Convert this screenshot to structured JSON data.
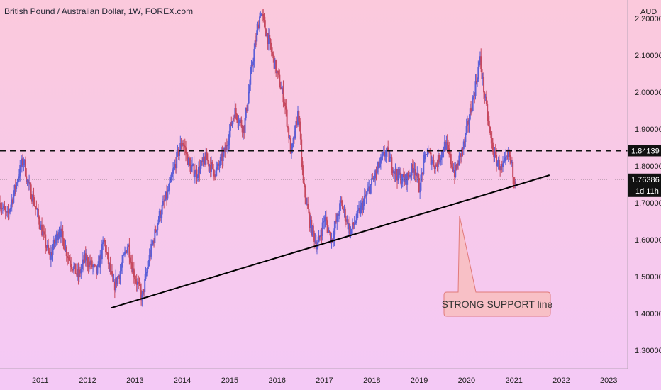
{
  "chart_data": {
    "type": "candlestick",
    "title": "British Pound / Australian Dollar, 1W, FOREX.com",
    "currency": "AUD",
    "y_ticks": [
      "2.20000",
      "2.10000",
      "2.00000",
      "1.90000",
      "1.80000",
      "1.70000",
      "1.60000",
      "1.50000",
      "1.40000",
      "1.30000"
    ],
    "y_tick_values": [
      2.2,
      2.1,
      2.0,
      1.9,
      1.8,
      1.7,
      1.6,
      1.5,
      1.4,
      1.3
    ],
    "x_ticks": [
      "2011",
      "2012",
      "2013",
      "2014",
      "2015",
      "2016",
      "2017",
      "2018",
      "2019",
      "2020",
      "2021",
      "2022",
      "2023"
    ],
    "x_tick_values": [
      2011,
      2012,
      2013,
      2014,
      2015,
      2016,
      2017,
      2018,
      2019,
      2020,
      2021,
      2022,
      2023
    ],
    "ylim": [
      1.25,
      2.25
    ],
    "xlim": [
      2010.15,
      2023.4
    ],
    "colors": {
      "up": "#5c5fd8",
      "down": "#c7485f",
      "bg_top": "#fbc9dc",
      "bg_bottom": "#f4c9f6"
    },
    "horizontal_line": {
      "value": 1.84139,
      "label": "1.84139",
      "style": "dashed"
    },
    "last_price": {
      "value": 1.76386,
      "label": "1.76386",
      "countdown": "1d 11h",
      "style": "dotted"
    },
    "support_line": {
      "start": [
        2012.5,
        1.415
      ],
      "end": [
        2021.75,
        1.775
      ]
    },
    "annotation": {
      "text": "STRONG SUPPORT line",
      "anchor": [
        2019.85,
        1.665
      ]
    },
    "path_points": [
      [
        2010.15,
        1.7
      ],
      [
        2010.3,
        1.66
      ],
      [
        2010.45,
        1.73
      ],
      [
        2010.55,
        1.78
      ],
      [
        2010.65,
        1.82
      ],
      [
        2010.72,
        1.76
      ],
      [
        2010.85,
        1.71
      ],
      [
        2011.0,
        1.64
      ],
      [
        2011.2,
        1.55
      ],
      [
        2011.4,
        1.63
      ],
      [
        2011.6,
        1.55
      ],
      [
        2011.8,
        1.5
      ],
      [
        2011.95,
        1.55
      ],
      [
        2012.2,
        1.51
      ],
      [
        2012.35,
        1.6
      ],
      [
        2012.4,
        1.56
      ],
      [
        2012.55,
        1.47
      ],
      [
        2012.7,
        1.52
      ],
      [
        2012.85,
        1.59
      ],
      [
        2012.95,
        1.52
      ],
      [
        2013.15,
        1.44
      ],
      [
        2013.3,
        1.55
      ],
      [
        2013.5,
        1.66
      ],
      [
        2013.7,
        1.73
      ],
      [
        2013.9,
        1.83
      ],
      [
        2014.0,
        1.87
      ],
      [
        2014.15,
        1.8
      ],
      [
        2014.3,
        1.78
      ],
      [
        2014.5,
        1.82
      ],
      [
        2014.7,
        1.78
      ],
      [
        2014.9,
        1.84
      ],
      [
        2015.1,
        1.95
      ],
      [
        2015.3,
        1.9
      ],
      [
        2015.5,
        2.1
      ],
      [
        2015.65,
        2.22
      ],
      [
        2015.8,
        2.15
      ],
      [
        2016.0,
        2.05
      ],
      [
        2016.15,
        1.98
      ],
      [
        2016.3,
        1.83
      ],
      [
        2016.45,
        1.95
      ],
      [
        2016.55,
        1.75
      ],
      [
        2016.7,
        1.64
      ],
      [
        2016.85,
        1.58
      ],
      [
        2017.0,
        1.66
      ],
      [
        2017.15,
        1.6
      ],
      [
        2017.35,
        1.7
      ],
      [
        2017.55,
        1.62
      ],
      [
        2017.75,
        1.68
      ],
      [
        2017.95,
        1.74
      ],
      [
        2018.15,
        1.8
      ],
      [
        2018.3,
        1.84
      ],
      [
        2018.5,
        1.78
      ],
      [
        2018.7,
        1.76
      ],
      [
        2018.9,
        1.8
      ],
      [
        2019.0,
        1.74
      ],
      [
        2019.15,
        1.84
      ],
      [
        2019.35,
        1.8
      ],
      [
        2019.55,
        1.86
      ],
      [
        2019.75,
        1.78
      ],
      [
        2019.95,
        1.86
      ],
      [
        2020.05,
        1.93
      ],
      [
        2020.15,
        1.99
      ],
      [
        2020.28,
        2.09
      ],
      [
        2020.4,
        1.97
      ],
      [
        2020.5,
        1.88
      ],
      [
        2020.6,
        1.82
      ],
      [
        2020.75,
        1.79
      ],
      [
        2020.9,
        1.83
      ],
      [
        2021.0,
        1.77
      ],
      [
        2021.05,
        1.76386
      ]
    ]
  }
}
